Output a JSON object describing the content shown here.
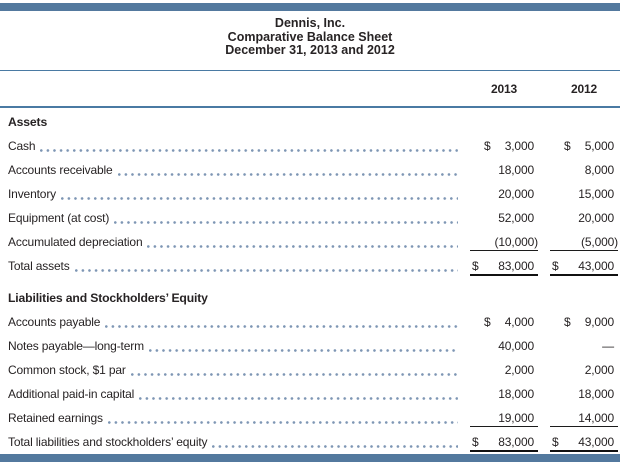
{
  "palette": {
    "accent_bar_blue": "#53799e",
    "thin_rule_blue": "#4a7aa3",
    "dot_leader_blue": "#7e96b4",
    "text_color": "#272324",
    "total_rule_black": "#111111"
  },
  "header": {
    "company": "Dennis, Inc.",
    "statement": "Comparative Balance Sheet",
    "date_line": "December 31, 2013 and 2012"
  },
  "columns": [
    "2013",
    "2012"
  ],
  "sections": [
    {
      "heading": "Assets",
      "rows": [
        {
          "label": "Cash",
          "cur_2013": "$",
          "val_2013": "3,000",
          "cur_2012": "$",
          "val_2012": "5,000",
          "underline": "none"
        },
        {
          "label": "Accounts receivable",
          "val_2013": "18,000",
          "val_2012": "8,000",
          "underline": "none"
        },
        {
          "label": "Inventory",
          "val_2013": "20,000",
          "val_2012": "15,000",
          "underline": "none"
        },
        {
          "label": "Equipment (at cost)",
          "val_2013": "52,000",
          "val_2012": "20,000",
          "underline": "none"
        },
        {
          "label": "Accumulated depreciation",
          "val_2013": "(10,000)",
          "val_2012": "(5,000)",
          "underline": "single"
        },
        {
          "label": "Total assets",
          "cur_2013": "$",
          "val_2013": "83,000",
          "cur_2012": "$",
          "val_2012": "43,000",
          "underline": "double",
          "total": true
        }
      ]
    },
    {
      "heading": "Liabilities and Stockholders’ Equity",
      "rows": [
        {
          "label": "Accounts payable",
          "cur_2013": "$",
          "val_2013": "4,000",
          "cur_2012": "$",
          "val_2012": "9,000",
          "underline": "none"
        },
        {
          "label": "Notes payable—long-term",
          "val_2013": "40,000",
          "val_2012": "—",
          "underline": "none"
        },
        {
          "label": "Common stock, $1 par",
          "val_2013": "2,000",
          "val_2012": "2,000",
          "underline": "none"
        },
        {
          "label": "Additional paid-in capital",
          "val_2013": "18,000",
          "val_2012": "18,000",
          "underline": "none"
        },
        {
          "label": "Retained earnings",
          "val_2013": "19,000",
          "val_2012": "14,000",
          "underline": "single"
        },
        {
          "label": "Total liabilities and stockholders’ equity",
          "cur_2013": "$",
          "val_2013": "83,000",
          "cur_2012": "$",
          "val_2012": "43,000",
          "underline": "double",
          "total": true
        }
      ]
    }
  ]
}
